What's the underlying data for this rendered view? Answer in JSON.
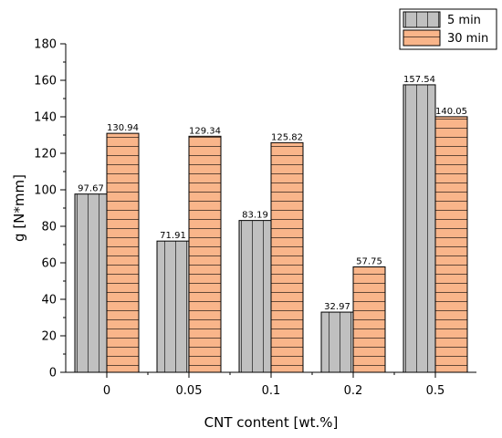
{
  "chart_data": {
    "type": "bar",
    "title": "",
    "xlabel": "CNT content [wt.%]",
    "ylabel": "g [N*mm]",
    "categories": [
      "0",
      "0.05",
      "0.1",
      "0.2",
      "0.5"
    ],
    "ylim": [
      0,
      180
    ],
    "yticks": [
      0,
      20,
      40,
      60,
      80,
      100,
      120,
      140,
      160,
      180
    ],
    "grid": false,
    "legend_position": "top-right",
    "series": [
      {
        "name": "5 min",
        "values": [
          97.67,
          71.91,
          83.19,
          32.97,
          157.54
        ],
        "labels": [
          "97.67",
          "71.91",
          "83.19",
          "32.97",
          "157.54"
        ],
        "color": "#c0c0c0",
        "pattern": "vertical-lines"
      },
      {
        "name": "30 min",
        "values": [
          130.94,
          129.34,
          125.82,
          57.75,
          140.05
        ],
        "labels": [
          "130.94",
          "129.34",
          "125.82",
          "57.75",
          "140.05"
        ],
        "color": "#f9b58a",
        "pattern": "horizontal-lines"
      }
    ]
  }
}
